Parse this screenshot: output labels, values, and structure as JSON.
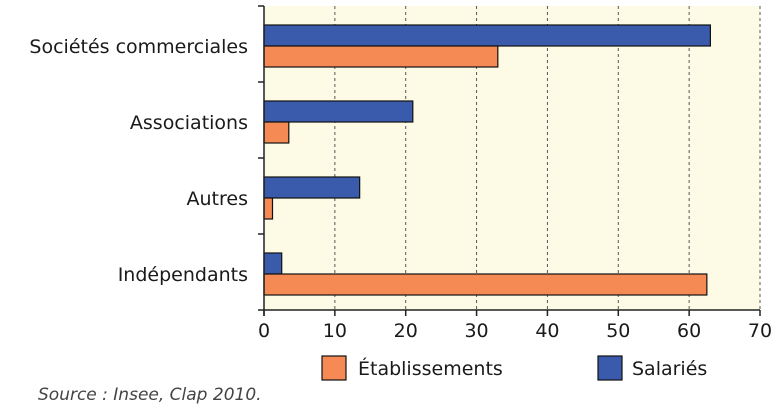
{
  "chart_data": {
    "type": "bar",
    "orientation": "horizontal",
    "categories": [
      "Sociétés commerciales",
      "Associations",
      "Autres",
      "Indépendants"
    ],
    "series": [
      {
        "name": "Salariés",
        "values": [
          63,
          21,
          13.5,
          2.5
        ],
        "color": "#3a5aab"
      },
      {
        "name": "Établissements",
        "values": [
          33,
          3.5,
          1.2,
          62.5
        ],
        "color": "#f58a55"
      }
    ],
    "xlim": [
      0,
      70
    ],
    "xticks": [
      0,
      10,
      20,
      30,
      40,
      50,
      60,
      70
    ],
    "grid": "vertical-dashed",
    "plot_background": "#fdfbe6",
    "legend": {
      "placement": "bottom",
      "entries": [
        {
          "name": "Établissements",
          "color": "#f58a55"
        },
        {
          "name": "Salariés",
          "color": "#3a5aab"
        }
      ]
    }
  },
  "source": "Source : Insee, Clap 2010."
}
